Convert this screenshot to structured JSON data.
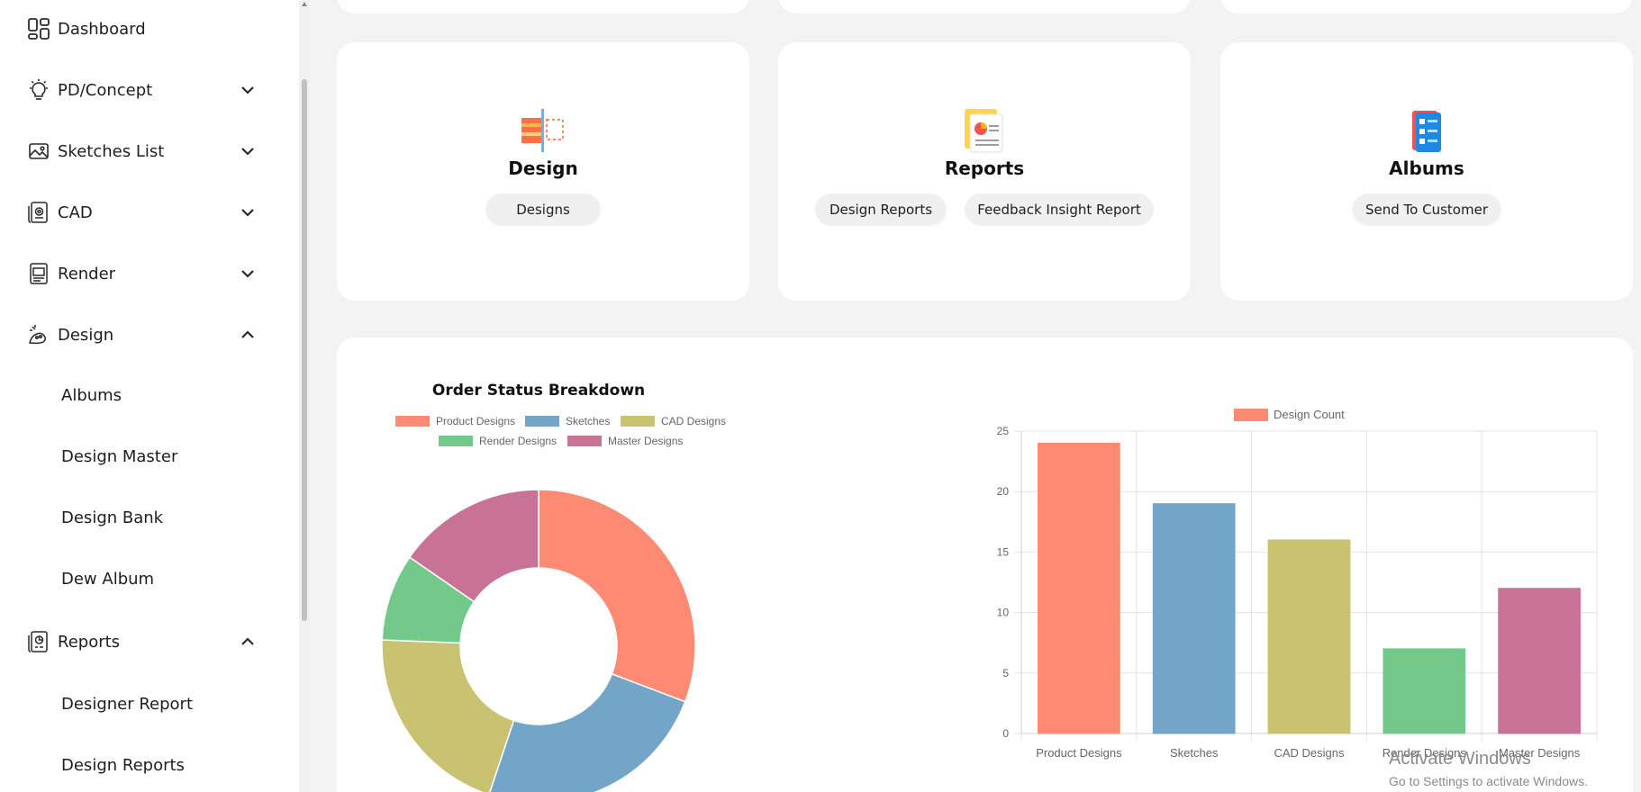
{
  "sidebar": {
    "items": [
      {
        "label": "Dashboard",
        "icon": "dashboard-icon"
      },
      {
        "label": "PD/Concept",
        "icon": "lightbulb-icon",
        "chevron": "down"
      },
      {
        "label": "Sketches List",
        "icon": "image-icon",
        "chevron": "down"
      },
      {
        "label": "CAD",
        "icon": "cad-file-icon",
        "chevron": "down"
      },
      {
        "label": "Render",
        "icon": "render-file-icon",
        "chevron": "down"
      },
      {
        "label": "Design",
        "icon": "design-icon",
        "chevron": "up"
      },
      {
        "label": "Reports",
        "icon": "report-icon",
        "chevron": "up"
      }
    ],
    "design_sub": [
      "Albums",
      "Design Master",
      "Design Bank",
      "Dew Album"
    ],
    "reports_sub": [
      "Designer Report",
      "Design Reports"
    ]
  },
  "cards": [
    {
      "title": "Design",
      "icon": "design-palette-icon",
      "links": [
        "Designs"
      ]
    },
    {
      "title": "Reports",
      "icon": "report-document-icon",
      "links": [
        "Design Reports",
        "Feedback Insight Report"
      ]
    },
    {
      "title": "Albums",
      "icon": "album-list-icon",
      "links": [
        "Send To Customer"
      ]
    }
  ],
  "watermark": {
    "title": "Activate Windows",
    "subtitle": "Go to Settings to activate Windows."
  },
  "chart_data": [
    {
      "type": "pie",
      "title": "Order Status Breakdown",
      "categories": [
        "Product Designs",
        "Sketches",
        "CAD Designs",
        "Render Designs",
        "Master Designs"
      ],
      "values": [
        24,
        19,
        16,
        7,
        12
      ],
      "colors": [
        "#ff8a73",
        "#72a5c8",
        "#c8c271",
        "#73c98a",
        "#c87396"
      ],
      "legend": "top"
    },
    {
      "type": "bar",
      "title": "",
      "series": [
        {
          "name": "Design Count",
          "values": [
            24,
            19,
            16,
            7,
            12
          ]
        }
      ],
      "categories": [
        "Product Designs",
        "Sketches",
        "CAD Designs",
        "Render Designs",
        "Master Designs"
      ],
      "colors": [
        "#ff8a73",
        "#72a5c8",
        "#c8c271",
        "#73c98a",
        "#c87396"
      ],
      "legend_color": "#ff8a73",
      "ylim": [
        0,
        25
      ],
      "yticks": [
        0,
        5,
        10,
        15,
        20,
        25
      ],
      "grid": true
    }
  ]
}
